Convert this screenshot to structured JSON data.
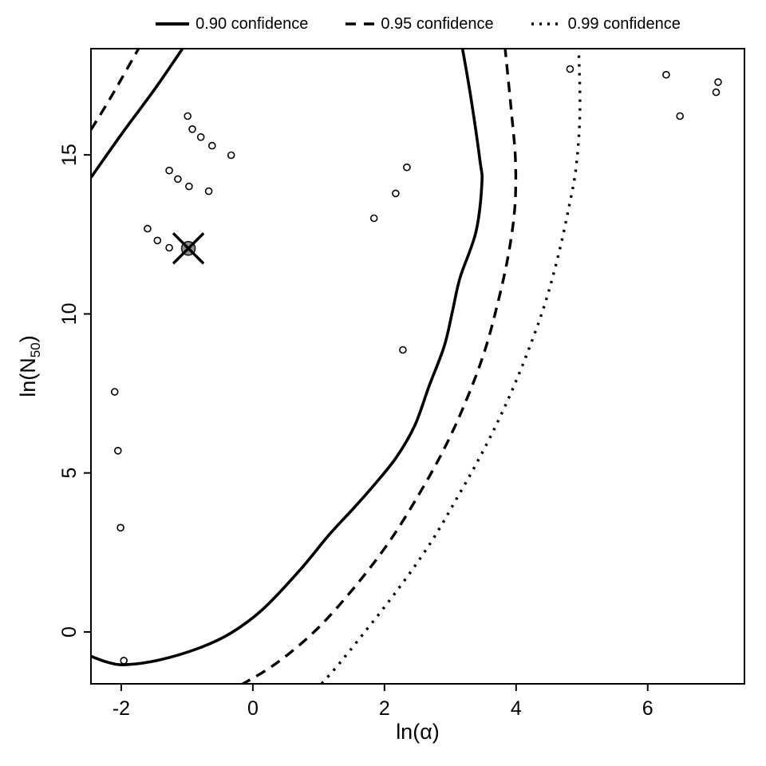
{
  "figure": {
    "background": "#ffffff",
    "foreground": "#000000"
  },
  "legend": {
    "items": [
      {
        "label": "0.90 confidence",
        "style": "solid"
      },
      {
        "label": "0.95 confidence",
        "style": "dashed"
      },
      {
        "label": "0.99 confidence",
        "style": "dotted"
      }
    ]
  },
  "chart_data": {
    "type": "scatter",
    "title": "",
    "xlabel": "ln(α)",
    "ylabel": "ln(N50)",
    "ylabel_parts": {
      "pre": "ln(N",
      "sub": "50",
      "post": ")"
    },
    "x_ticks": [
      -2,
      0,
      2,
      4,
      6
    ],
    "y_ticks": [
      0,
      5,
      10,
      15
    ],
    "xlim": [
      -2.46,
      7.47
    ],
    "ylim": [
      -1.63,
      18.34
    ],
    "grid": false,
    "legend_position": "top",
    "points": [
      [
        -0.99,
        16.22
      ],
      [
        -0.92,
        15.81
      ],
      [
        -0.79,
        15.56
      ],
      [
        -0.62,
        15.29
      ],
      [
        -0.33,
        14.99
      ],
      [
        -1.27,
        14.51
      ],
      [
        -1.14,
        14.24
      ],
      [
        -0.97,
        14.01
      ],
      [
        -0.67,
        13.86
      ],
      [
        -1.6,
        12.68
      ],
      [
        -1.45,
        12.31
      ],
      [
        -1.27,
        12.08
      ],
      [
        -2.1,
        7.55
      ],
      [
        -2.05,
        5.7
      ],
      [
        -2.01,
        3.28
      ],
      [
        -1.96,
        -0.9
      ],
      [
        2.34,
        14.61
      ],
      [
        2.17,
        13.79
      ],
      [
        1.84,
        13.01
      ],
      [
        2.28,
        8.87
      ],
      [
        4.82,
        17.7
      ],
      [
        6.28,
        17.52
      ],
      [
        7.07,
        17.29
      ],
      [
        7.04,
        16.97
      ],
      [
        6.49,
        16.22
      ]
    ],
    "estimate_point": {
      "x": -0.98,
      "y": 12.06,
      "marker": "circle-x",
      "fill": "#8f8f8f"
    },
    "contours": [
      {
        "name": "0.90 confidence",
        "style": "solid",
        "branches": [
          [
            [
              -2.46,
              14.29
            ],
            [
              -1.99,
              15.67
            ],
            [
              -1.48,
              17.1
            ],
            [
              -1.05,
              18.4
            ]
          ],
          [
            [
              3.18,
              18.4
            ],
            [
              3.31,
              16.84
            ],
            [
              3.45,
              14.84
            ],
            [
              3.48,
              14.09
            ],
            [
              3.39,
              12.58
            ],
            [
              3.15,
              11.15
            ],
            [
              3.04,
              10.15
            ],
            [
              2.91,
              9.0
            ],
            [
              2.68,
              7.74
            ],
            [
              2.46,
              6.49
            ],
            [
              2.18,
              5.49
            ],
            [
              1.85,
              4.64
            ],
            [
              1.53,
              3.89
            ],
            [
              1.16,
              3.06
            ],
            [
              0.73,
              1.98
            ],
            [
              0.16,
              0.73
            ],
            [
              -0.33,
              -0.03
            ],
            [
              -0.81,
              -0.5
            ],
            [
              -1.42,
              -0.88
            ],
            [
              -1.94,
              -1.03
            ],
            [
              -2.21,
              -0.95
            ],
            [
              -2.5,
              -0.73
            ]
          ]
        ]
      },
      {
        "name": "0.95 confidence",
        "style": "dashed",
        "branches": [
          [
            [
              -2.46,
              15.79
            ],
            [
              -2.15,
              16.84
            ],
            [
              -1.72,
              18.4
            ]
          ],
          [
            [
              3.83,
              18.4
            ],
            [
              3.93,
              16.34
            ],
            [
              3.99,
              14.84
            ],
            [
              3.98,
              13.34
            ],
            [
              3.88,
              11.83
            ],
            [
              3.72,
              10.33
            ],
            [
              3.52,
              8.82
            ],
            [
              3.25,
              7.32
            ],
            [
              2.92,
              5.81
            ],
            [
              2.52,
              4.31
            ],
            [
              2.06,
              2.8
            ],
            [
              1.53,
              1.37
            ],
            [
              0.95,
              0.04
            ],
            [
              0.34,
              -1.01
            ],
            [
              -0.21,
              -1.7
            ]
          ]
        ]
      },
      {
        "name": "0.99 confidence",
        "style": "dotted",
        "branches": [
          [
            [
              4.95,
              18.4
            ],
            [
              4.97,
              16.34
            ],
            [
              4.91,
              14.59
            ],
            [
              4.8,
              13.33
            ],
            [
              4.64,
              11.83
            ],
            [
              4.44,
              10.33
            ],
            [
              4.18,
              8.82
            ],
            [
              3.88,
              7.32
            ],
            [
              3.53,
              5.81
            ],
            [
              3.13,
              4.31
            ],
            [
              2.7,
              2.8
            ],
            [
              2.19,
              1.3
            ],
            [
              1.67,
              -0.08
            ],
            [
              1.25,
              -1.15
            ],
            [
              1.01,
              -1.7
            ]
          ]
        ]
      }
    ]
  }
}
